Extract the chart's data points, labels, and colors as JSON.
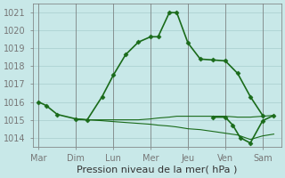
{
  "days": [
    "Mar",
    "Dim",
    "Lun",
    "Mer",
    "Jeu",
    "Ven",
    "Sam"
  ],
  "day_tick_positions": [
    0,
    1,
    2,
    3,
    4,
    5,
    6
  ],
  "line_main": {
    "x": [
      0.0,
      0.2,
      0.5,
      1.0,
      1.3,
      1.7,
      2.0,
      2.33,
      2.67,
      3.0,
      3.2,
      3.5,
      3.7,
      4.0,
      4.33,
      4.67,
      5.0,
      5.33,
      5.67,
      6.0
    ],
    "y": [
      1016.0,
      1015.8,
      1015.3,
      1015.05,
      1015.0,
      1016.3,
      1017.5,
      1018.65,
      1019.35,
      1019.65,
      1019.65,
      1021.0,
      1021.0,
      1019.3,
      1018.4,
      1018.35,
      1018.3,
      1017.6,
      1016.3,
      1015.25
    ],
    "color": "#1a6b1a",
    "lw": 1.2,
    "marker": "D",
    "ms": 2.5
  },
  "line_flat1": {
    "x": [
      1.0,
      1.3,
      1.7,
      2.0,
      2.33,
      2.67,
      3.0,
      3.2,
      3.5,
      3.7,
      4.0,
      4.33,
      4.67,
      5.0,
      5.33,
      5.67,
      6.0,
      6.3
    ],
    "y": [
      1015.05,
      1015.0,
      1015.0,
      1015.0,
      1015.0,
      1015.0,
      1015.05,
      1015.1,
      1015.15,
      1015.2,
      1015.2,
      1015.2,
      1015.2,
      1015.2,
      1015.15,
      1015.15,
      1015.2,
      1015.25
    ],
    "color": "#1a6b1a",
    "lw": 0.8
  },
  "line_flat2": {
    "x": [
      1.0,
      1.3,
      1.7,
      2.0,
      2.33,
      2.67,
      3.0,
      3.2,
      3.5,
      3.7,
      4.0,
      4.33,
      4.67,
      5.0,
      5.33,
      5.67,
      6.0,
      6.3
    ],
    "y": [
      1015.0,
      1015.0,
      1014.95,
      1014.9,
      1014.85,
      1014.8,
      1014.75,
      1014.7,
      1014.65,
      1014.6,
      1014.5,
      1014.45,
      1014.35,
      1014.25,
      1014.15,
      1013.9,
      1014.1,
      1014.2
    ],
    "color": "#1a6b1a",
    "lw": 0.8
  },
  "line_ven": {
    "x": [
      4.67,
      5.0,
      5.2,
      5.4,
      5.67,
      6.0,
      6.3
    ],
    "y": [
      1015.15,
      1015.15,
      1014.7,
      1014.0,
      1013.7,
      1014.95,
      1015.25
    ],
    "color": "#1a6b1a",
    "lw": 1.2,
    "marker": "D",
    "ms": 2.5
  },
  "xlabel": "Pression niveau de la mer( hPa )",
  "ylim": [
    1013.5,
    1021.5
  ],
  "yticks": [
    1014,
    1015,
    1016,
    1017,
    1018,
    1019,
    1020,
    1021
  ],
  "xlim": [
    -0.15,
    6.5
  ],
  "bg_color": "#c8e8e8",
  "grid_color": "#a8cece",
  "line_color": "#1a6b1a",
  "axis_color": "#777777",
  "xlabel_fontsize": 8,
  "tick_fontsize": 7
}
